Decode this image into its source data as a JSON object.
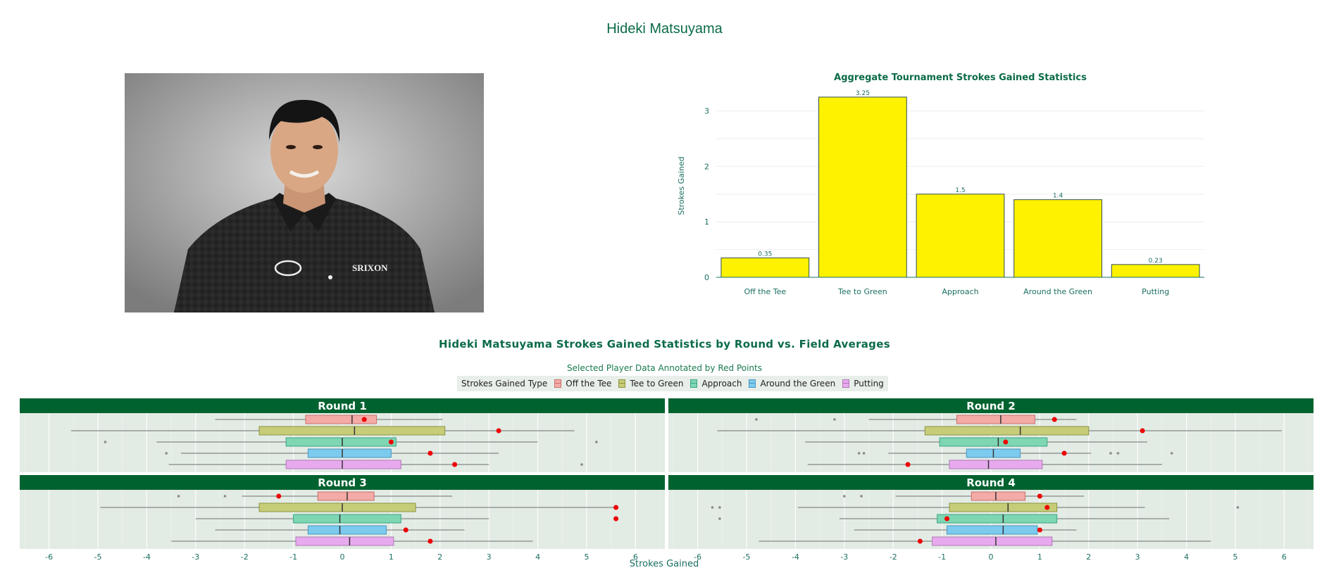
{
  "page": {
    "title": "Hideki Matsuyama"
  },
  "photo": {
    "subject": "player-headshot",
    "shirt_logo_text": "SRIXON"
  },
  "chart_data": [
    {
      "type": "bar",
      "title": "Aggregate Tournament Strokes Gained Statistics",
      "xlabel": "",
      "ylabel": "Strokes Gained",
      "categories": [
        "Off the Tee",
        "Tee to Green",
        "Approach",
        "Around the Green",
        "Putting"
      ],
      "values": [
        0.35,
        3.25,
        1.5,
        1.4,
        0.23
      ],
      "value_labels": [
        "0.35",
        "3.25",
        "1.5",
        "1.4",
        "0.23"
      ],
      "yticks": [
        0,
        1,
        2,
        3
      ],
      "ylim": [
        0,
        3.3
      ],
      "bar_color": "#fff200",
      "grid": true,
      "legend": false
    },
    {
      "type": "box",
      "title": "Hideki Matsuyama Strokes Gained Statistics by Round vs. Field Averages",
      "subtitle": "Selected Player Data Annotated by Red Points",
      "xlabel": "Strokes Gained",
      "xticks": [
        -6,
        -5,
        -4,
        -3,
        -2,
        -1,
        0,
        1,
        2,
        3,
        4,
        5,
        6
      ],
      "xlim": [
        -6.6,
        6.6
      ],
      "legend": {
        "title": "Strokes Gained Type",
        "placement": "top-center",
        "entries": [
          "Off the Tee",
          "Tee to Green",
          "Approach",
          "Around the Green",
          "Putting"
        ]
      },
      "series_colors": {
        "Off the Tee": "#f4aaa6",
        "Tee to Green": "#c6cc78",
        "Approach": "#7ed6b3",
        "Around the Green": "#7ccbef",
        "Putting": "#e8aaee"
      },
      "series_border_colors": {
        "Off the Tee": "#c9716c",
        "Tee to Green": "#8c9440",
        "Approach": "#3aa585",
        "Around the Green": "#4a97c0",
        "Putting": "#b276b8"
      },
      "facet_header_color": "#00622f",
      "panel_bg_color": "#e2ebe4",
      "player_point_color": "#ee0000",
      "panels": [
        {
          "label": "Round 1",
          "boxes": [
            {
              "type": "Off the Tee",
              "whisker_low": -2.6,
              "q1": -0.75,
              "median": 0.2,
              "q3": 0.7,
              "whisker_high": 2.05,
              "outliers": [],
              "player": 0.45
            },
            {
              "type": "Tee to Green",
              "whisker_low": -5.55,
              "q1": -1.7,
              "median": 0.25,
              "q3": 2.1,
              "whisker_high": 4.75,
              "outliers": [],
              "player": 3.2
            },
            {
              "type": "Approach",
              "whisker_low": -3.8,
              "q1": -1.15,
              "median": 0.0,
              "q3": 1.1,
              "whisker_high": 4.0,
              "outliers": [
                -4.85,
                5.2
              ],
              "player": 1.0
            },
            {
              "type": "Around the Green",
              "whisker_low": -3.3,
              "q1": -0.7,
              "median": 0.0,
              "q3": 1.0,
              "whisker_high": 3.2,
              "outliers": [
                -3.6
              ],
              "player": 1.8
            },
            {
              "type": "Putting",
              "whisker_low": -3.55,
              "q1": -1.15,
              "median": 0.0,
              "q3": 1.2,
              "whisker_high": 3.0,
              "outliers": [
                4.9
              ],
              "player": 2.3
            }
          ]
        },
        {
          "label": "Round 2",
          "boxes": [
            {
              "type": "Off the Tee",
              "whisker_low": -2.5,
              "q1": -0.7,
              "median": 0.2,
              "q3": 0.9,
              "whisker_high": 1.75,
              "outliers": [
                -4.8,
                -3.2
              ],
              "player": 1.3
            },
            {
              "type": "Tee to Green",
              "whisker_low": -5.6,
              "q1": -1.35,
              "median": 0.6,
              "q3": 2.0,
              "whisker_high": 5.95,
              "outliers": [],
              "player": 3.1
            },
            {
              "type": "Approach",
              "whisker_low": -3.8,
              "q1": -1.05,
              "median": 0.15,
              "q3": 1.15,
              "whisker_high": 3.2,
              "outliers": [],
              "player": 0.3
            },
            {
              "type": "Around the Green",
              "whisker_low": -2.1,
              "q1": -0.5,
              "median": 0.05,
              "q3": 0.6,
              "whisker_high": 2.05,
              "outliers": [
                -2.7,
                -2.6,
                2.45,
                2.6,
                3.7
              ],
              "player": 1.5
            },
            {
              "type": "Putting",
              "whisker_low": -3.75,
              "q1": -0.85,
              "median": -0.05,
              "q3": 1.05,
              "whisker_high": 3.5,
              "outliers": [],
              "player": -1.7
            }
          ]
        },
        {
          "label": "Round 3",
          "boxes": [
            {
              "type": "Off the Tee",
              "whisker_low": -2.05,
              "q1": -0.5,
              "median": 0.1,
              "q3": 0.65,
              "whisker_high": 2.25,
              "outliers": [
                -3.35,
                -2.4
              ],
              "player": -1.3
            },
            {
              "type": "Tee to Green",
              "whisker_low": -4.95,
              "q1": -1.7,
              "median": 0.0,
              "q3": 1.5,
              "whisker_high": 5.6,
              "outliers": [],
              "player": 5.6
            },
            {
              "type": "Approach",
              "whisker_low": -3.0,
              "q1": -1.0,
              "median": -0.05,
              "q3": 1.2,
              "whisker_high": 3.0,
              "outliers": [],
              "player": 5.6
            },
            {
              "type": "Around the Green",
              "whisker_low": -2.6,
              "q1": -0.7,
              "median": -0.05,
              "q3": 0.9,
              "whisker_high": 2.5,
              "outliers": [],
              "player": 1.3
            },
            {
              "type": "Putting",
              "whisker_low": -3.5,
              "q1": -0.95,
              "median": 0.15,
              "q3": 1.05,
              "whisker_high": 3.9,
              "outliers": [],
              "player": 1.8
            }
          ]
        },
        {
          "label": "Round 4",
          "boxes": [
            {
              "type": "Off the Tee",
              "whisker_low": -1.95,
              "q1": -0.4,
              "median": 0.1,
              "q3": 0.7,
              "whisker_high": 1.9,
              "outliers": [
                -3.0,
                -2.65
              ],
              "player": 1.0
            },
            {
              "type": "Tee to Green",
              "whisker_low": -3.95,
              "q1": -0.85,
              "median": 0.35,
              "q3": 1.35,
              "whisker_high": 3.15,
              "outliers": [
                -5.7,
                -5.55,
                5.05
              ],
              "player": 1.15
            },
            {
              "type": "Approach",
              "whisker_low": -3.1,
              "q1": -1.1,
              "median": 0.25,
              "q3": 1.35,
              "whisker_high": 3.65,
              "outliers": [
                -5.55
              ],
              "player": -0.9
            },
            {
              "type": "Around the Green",
              "whisker_low": -2.8,
              "q1": -0.9,
              "median": 0.25,
              "q3": 0.95,
              "whisker_high": 1.75,
              "outliers": [],
              "player": 1.0
            },
            {
              "type": "Putting",
              "whisker_low": -4.75,
              "q1": -1.2,
              "median": 0.1,
              "q3": 1.25,
              "whisker_high": 4.5,
              "outliers": [],
              "player": -1.45
            }
          ]
        }
      ]
    }
  ]
}
